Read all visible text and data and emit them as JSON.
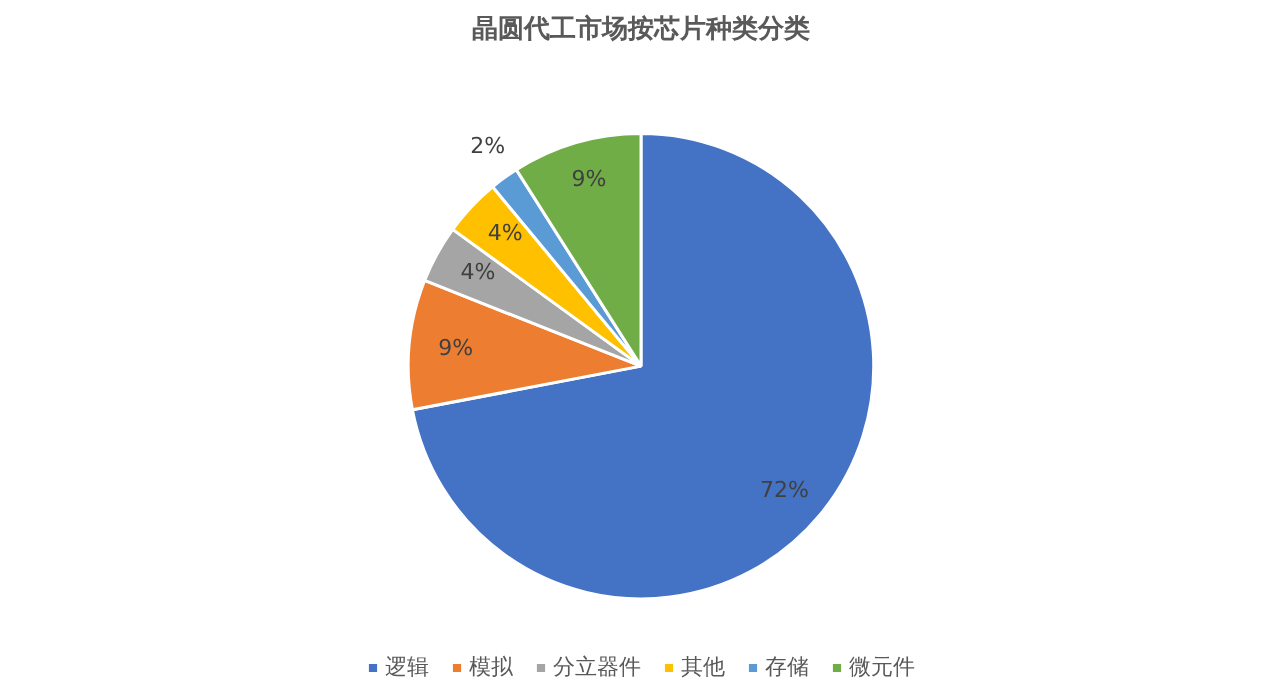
{
  "chart_data": {
    "type": "pie",
    "title": "晶圆代工市场按芯片种类分类",
    "categories": [
      "逻辑",
      "模拟",
      "分立器件",
      "其他",
      "存储",
      "微元件"
    ],
    "values": [
      72,
      9,
      4,
      4,
      2,
      9
    ],
    "colors": [
      "#4472c4",
      "#ed7d31",
      "#a5a5a5",
      "#ffc000",
      "#5b9bd5",
      "#70ad47"
    ],
    "value_labels": [
      "72%",
      "9%",
      "4%",
      "4%",
      "2%",
      "9%"
    ],
    "legend": "bottom"
  }
}
